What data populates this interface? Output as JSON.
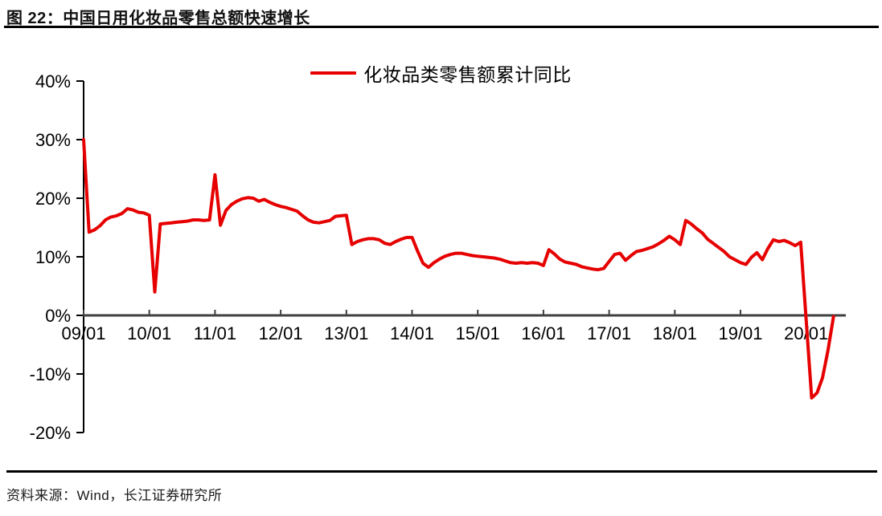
{
  "header": {
    "title": "图 22：中国日用化妆品零售总额快速增长"
  },
  "footer": {
    "source": "资料来源：Wind，长江证券研究所"
  },
  "chart_data": {
    "type": "line",
    "title": "图 22：中国日用化妆品零售总额快速增长",
    "legend_position": "top-center",
    "grid": false,
    "xlabel": "",
    "ylabel": "",
    "ylim": [
      -20,
      40
    ],
    "y_ticks": [
      40,
      30,
      20,
      10,
      0,
      -10,
      -20
    ],
    "y_tick_labels": [
      "40%",
      "30%",
      "20%",
      "10%",
      "0%",
      "-10%",
      "-20%"
    ],
    "x_tick_labels": [
      "09/01",
      "10/01",
      "11/01",
      "12/01",
      "13/01",
      "14/01",
      "15/01",
      "16/01",
      "17/01",
      "18/01",
      "19/01",
      "20/01"
    ],
    "axis_color": "#000000",
    "zero_line_color": "#3f3f3f",
    "series": [
      {
        "name": "化妆品类零售额累计同比",
        "color": "#e60000",
        "unit": "%",
        "points": [
          [
            "2009-01",
            30.0
          ],
          [
            "2009-02",
            14.2
          ],
          [
            "2009-03",
            14.6
          ],
          [
            "2009-04",
            15.3
          ],
          [
            "2009-05",
            16.3
          ],
          [
            "2009-06",
            16.8
          ],
          [
            "2009-07",
            17.0
          ],
          [
            "2009-08",
            17.4
          ],
          [
            "2009-09",
            18.2
          ],
          [
            "2009-10",
            18.0
          ],
          [
            "2009-11",
            17.6
          ],
          [
            "2009-12",
            17.5
          ],
          [
            "2010-01",
            17.1
          ],
          [
            "2010-02",
            4.0
          ],
          [
            "2010-03",
            15.6
          ],
          [
            "2010-04",
            15.7
          ],
          [
            "2010-05",
            15.8
          ],
          [
            "2010-06",
            15.9
          ],
          [
            "2010-07",
            16.0
          ],
          [
            "2010-08",
            16.1
          ],
          [
            "2010-09",
            16.3
          ],
          [
            "2010-10",
            16.3
          ],
          [
            "2010-11",
            16.2
          ],
          [
            "2010-12",
            16.3
          ],
          [
            "2011-01",
            24.0
          ],
          [
            "2011-02",
            15.4
          ],
          [
            "2011-03",
            17.9
          ],
          [
            "2011-04",
            18.9
          ],
          [
            "2011-05",
            19.5
          ],
          [
            "2011-06",
            19.9
          ],
          [
            "2011-07",
            20.1
          ],
          [
            "2011-08",
            20.0
          ],
          [
            "2011-09",
            19.5
          ],
          [
            "2011-10",
            19.8
          ],
          [
            "2011-11",
            19.3
          ],
          [
            "2011-12",
            18.9
          ],
          [
            "2012-01",
            18.6
          ],
          [
            "2012-02",
            18.4
          ],
          [
            "2012-03",
            18.1
          ],
          [
            "2012-04",
            17.8
          ],
          [
            "2012-05",
            17.0
          ],
          [
            "2012-06",
            16.3
          ],
          [
            "2012-07",
            15.9
          ],
          [
            "2012-08",
            15.8
          ],
          [
            "2012-09",
            16.0
          ],
          [
            "2012-10",
            16.2
          ],
          [
            "2012-11",
            16.9
          ],
          [
            "2012-12",
            17.0
          ],
          [
            "2013-01",
            17.1
          ],
          [
            "2013-02",
            12.1
          ],
          [
            "2013-03",
            12.6
          ],
          [
            "2013-04",
            12.9
          ],
          [
            "2013-05",
            13.1
          ],
          [
            "2013-06",
            13.1
          ],
          [
            "2013-07",
            12.9
          ],
          [
            "2013-08",
            12.3
          ],
          [
            "2013-09",
            12.1
          ],
          [
            "2013-10",
            12.6
          ],
          [
            "2013-11",
            13.0
          ],
          [
            "2013-12",
            13.3
          ],
          [
            "2014-01",
            13.3
          ],
          [
            "2014-02",
            11.0
          ],
          [
            "2014-03",
            8.9
          ],
          [
            "2014-04",
            8.2
          ],
          [
            "2014-05",
            9.0
          ],
          [
            "2014-06",
            9.6
          ],
          [
            "2014-07",
            10.1
          ],
          [
            "2014-08",
            10.4
          ],
          [
            "2014-09",
            10.6
          ],
          [
            "2014-10",
            10.6
          ],
          [
            "2014-11",
            10.4
          ],
          [
            "2014-12",
            10.2
          ],
          [
            "2015-01",
            10.1
          ],
          [
            "2015-02",
            10.0
          ],
          [
            "2015-03",
            9.9
          ],
          [
            "2015-04",
            9.8
          ],
          [
            "2015-05",
            9.6
          ],
          [
            "2015-06",
            9.3
          ],
          [
            "2015-07",
            9.0
          ],
          [
            "2015-08",
            8.9
          ],
          [
            "2015-09",
            9.0
          ],
          [
            "2015-10",
            8.9
          ],
          [
            "2015-11",
            9.0
          ],
          [
            "2015-12",
            8.9
          ],
          [
            "2016-01",
            8.5
          ],
          [
            "2016-02",
            11.2
          ],
          [
            "2016-03",
            10.5
          ],
          [
            "2016-04",
            9.6
          ],
          [
            "2016-05",
            9.1
          ],
          [
            "2016-06",
            8.9
          ],
          [
            "2016-07",
            8.7
          ],
          [
            "2016-08",
            8.3
          ],
          [
            "2016-09",
            8.1
          ],
          [
            "2016-10",
            7.9
          ],
          [
            "2016-11",
            7.8
          ],
          [
            "2016-12",
            8.0
          ],
          [
            "2017-01",
            9.2
          ],
          [
            "2017-02",
            10.4
          ],
          [
            "2017-03",
            10.6
          ],
          [
            "2017-04",
            9.4
          ],
          [
            "2017-05",
            10.2
          ],
          [
            "2017-06",
            10.9
          ],
          [
            "2017-07",
            11.1
          ],
          [
            "2017-08",
            11.4
          ],
          [
            "2017-09",
            11.7
          ],
          [
            "2017-10",
            12.2
          ],
          [
            "2017-11",
            12.8
          ],
          [
            "2017-12",
            13.5
          ],
          [
            "2018-01",
            12.9
          ],
          [
            "2018-02",
            12.1
          ],
          [
            "2018-03",
            16.2
          ],
          [
            "2018-04",
            15.6
          ],
          [
            "2018-05",
            14.8
          ],
          [
            "2018-06",
            14.1
          ],
          [
            "2018-07",
            13.0
          ],
          [
            "2018-08",
            12.3
          ],
          [
            "2018-09",
            11.6
          ],
          [
            "2018-10",
            10.9
          ],
          [
            "2018-11",
            10.0
          ],
          [
            "2018-12",
            9.5
          ],
          [
            "2019-01",
            9.0
          ],
          [
            "2019-02",
            8.7
          ],
          [
            "2019-03",
            9.9
          ],
          [
            "2019-04",
            10.7
          ],
          [
            "2019-05",
            9.5
          ],
          [
            "2019-06",
            11.4
          ],
          [
            "2019-07",
            12.9
          ],
          [
            "2019-08",
            12.6
          ],
          [
            "2019-09",
            12.8
          ],
          [
            "2019-10",
            12.4
          ],
          [
            "2019-11",
            11.9
          ],
          [
            "2019-12",
            12.5
          ],
          [
            "2020-02",
            -14.1
          ],
          [
            "2020-03",
            -13.2
          ],
          [
            "2020-04",
            -10.6
          ],
          [
            "2020-05",
            -5.9
          ],
          [
            "2020-06",
            -0.2
          ]
        ]
      }
    ]
  }
}
